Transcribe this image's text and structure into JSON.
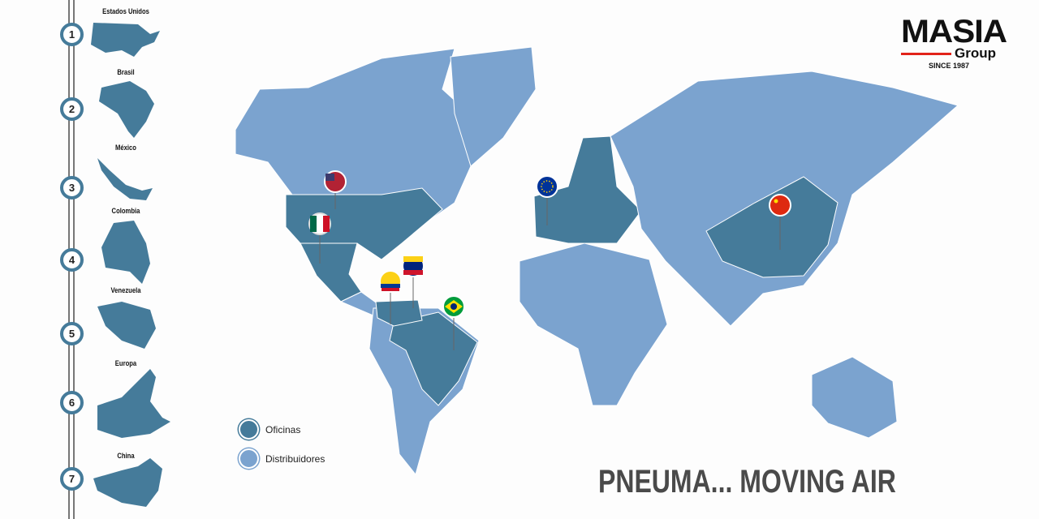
{
  "brand": {
    "name": "MASIA",
    "sub": "Group",
    "since": "SINCE 1987",
    "accent": "#e2231a"
  },
  "colors": {
    "offices": "#457b9a",
    "distributors": "#7ba3cf"
  },
  "locations": [
    {
      "num": "1",
      "name": "Estados Unidos",
      "flag": "us-flag"
    },
    {
      "num": "2",
      "name": "Brasil",
      "flag": "brazil-flag"
    },
    {
      "num": "3",
      "name": "México",
      "flag": "mexico-flag"
    },
    {
      "num": "4",
      "name": "Colombia",
      "flag": "colombia-flag"
    },
    {
      "num": "5",
      "name": "Venezuela",
      "flag": "venezuela-flag"
    },
    {
      "num": "6",
      "name": "Europa",
      "flag": "eu-flag"
    },
    {
      "num": "7",
      "name": "China",
      "flag": "china-flag"
    }
  ],
  "legend": {
    "offices": "Oficinas",
    "distributors": "Distribuidores"
  },
  "slogan": "PNEUMA... MOVING AIR"
}
